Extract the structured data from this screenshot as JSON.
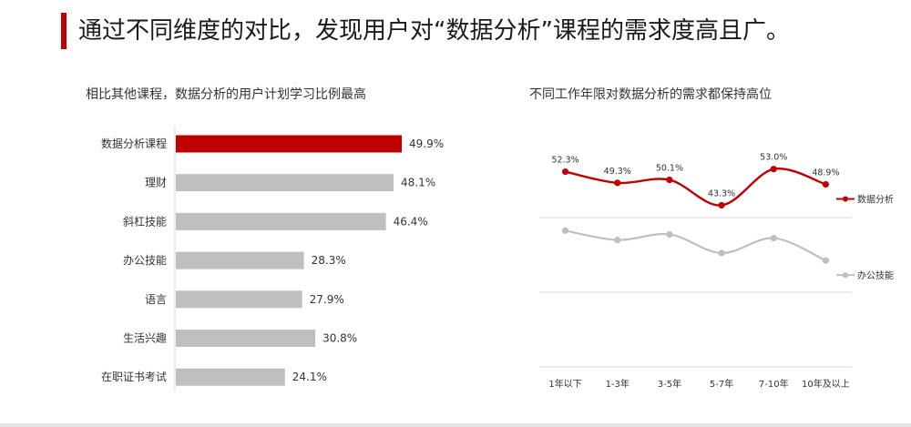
{
  "page": {
    "title": "通过不同维度的对比，发现用户对“数据分析”课程的需求度高且广。"
  },
  "chart_data": [
    {
      "type": "bar",
      "orientation": "horizontal",
      "title": "相比其他课程，数据分析的用户计划学习比例最高",
      "categories": [
        "数据分析课程",
        "理财",
        "斜杠技能",
        "办公技能",
        "语言",
        "生活兴趣",
        "在职证书考试"
      ],
      "values": [
        49.9,
        48.1,
        46.4,
        28.3,
        27.9,
        30.8,
        24.1
      ],
      "value_labels": [
        "49.9%",
        "48.1%",
        "46.4%",
        "28.3%",
        "27.9%",
        "30.8%",
        "24.1%"
      ],
      "unit": "%",
      "highlight_index": 0,
      "colors": {
        "highlight": "#c00000",
        "default": "#bfbfbf"
      },
      "grid": false
    },
    {
      "type": "line",
      "title": "不同工作年限对数据分析的需求都保持高位",
      "x": [
        "1年以下",
        "1-3年",
        "3-5年",
        "5-7年",
        "7-10年",
        "10年及以上"
      ],
      "series": [
        {
          "name": "数据分析",
          "values": [
            52.3,
            49.3,
            50.1,
            43.3,
            53.0,
            48.9
          ],
          "value_labels": [
            "52.3%",
            "49.3%",
            "50.1%",
            "43.3%",
            "53.0%",
            "48.9%"
          ],
          "color": "#c00000"
        },
        {
          "name": "办公技能",
          "values": [
            36.5,
            34.0,
            35.5,
            30.5,
            34.5,
            28.5
          ],
          "color": "#bfbfbf"
        }
      ],
      "ylim": [
        0,
        60
      ],
      "gridlines": [
        20,
        40
      ],
      "legend": "right",
      "smooth": true
    }
  ]
}
